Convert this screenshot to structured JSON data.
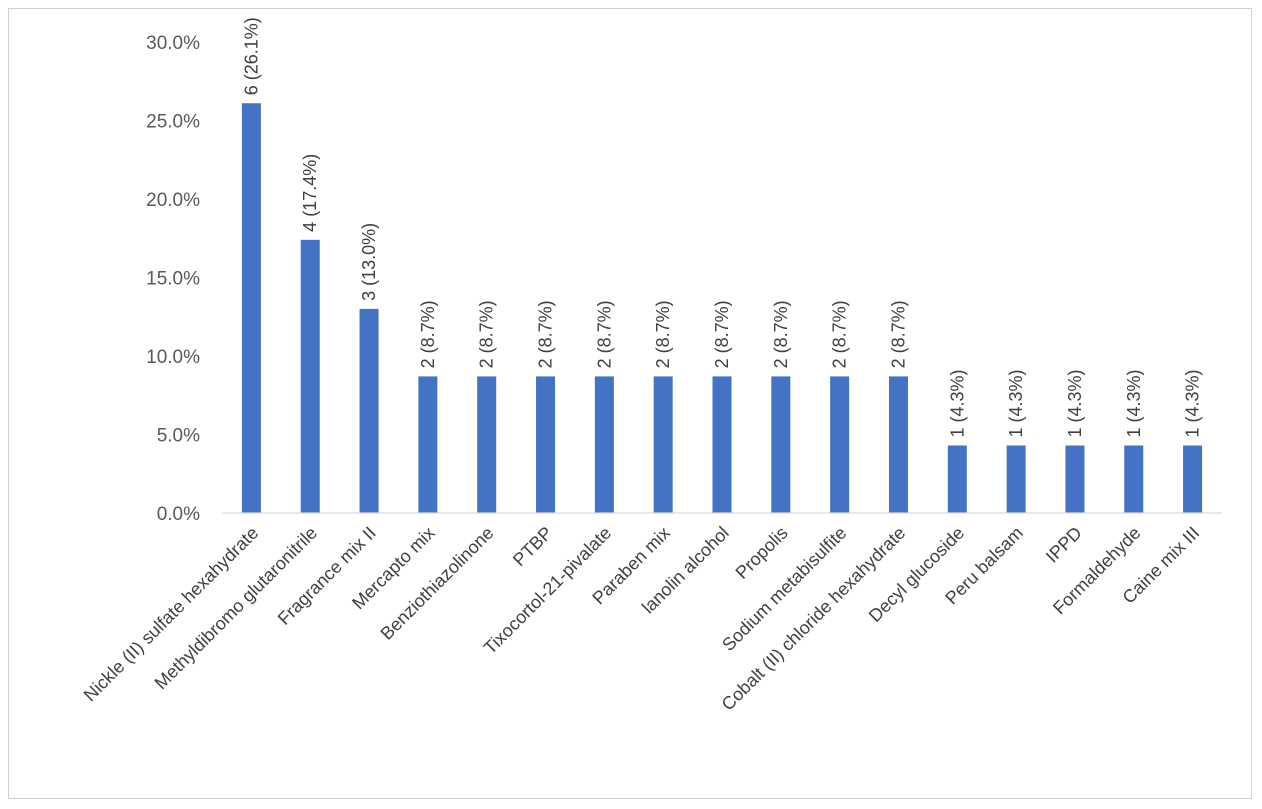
{
  "chart_data": {
    "type": "bar",
    "title": "",
    "xlabel": "",
    "ylabel": "",
    "ylim": [
      0,
      30
    ],
    "yticks": [
      "0.0%",
      "5.0%",
      "10.0%",
      "15.0%",
      "20.0%",
      "25.0%",
      "30.0%"
    ],
    "ytick_values": [
      0,
      5,
      10,
      15,
      20,
      25,
      30
    ],
    "grid": false,
    "legend": "none",
    "bar_color": "#4472C4",
    "categories": [
      "Nickle (II) sulfate hexahydrate",
      "Methyldibromo glutaronitrile",
      "Fragrance mix II",
      "Mercapto mix",
      "Benziothiazolinone",
      "PTBP",
      "Tixocortol-21-pivalate",
      "Paraben mix",
      "lanolin alcohol",
      "Propolis",
      "Sodium metabisulfite",
      "Cobalt (II) chloride hexahydrate",
      "Decyl glucoside",
      "Peru balsam",
      "IPPD",
      "Formaldehyde",
      "Caine mix III"
    ],
    "values": [
      26.1,
      17.4,
      13.0,
      8.7,
      8.7,
      8.7,
      8.7,
      8.7,
      8.7,
      8.7,
      8.7,
      8.7,
      4.3,
      4.3,
      4.3,
      4.3,
      4.3
    ],
    "data_labels": [
      "6 (26.1%)",
      "4 (17.4%)",
      "3 (13.0%)",
      "2 (8.7%)",
      "2 (8.7%)",
      "2 (8.7%)",
      "2 (8.7%)",
      "2 (8.7%)",
      "2 (8.7%)",
      "2 (8.7%)",
      "2 (8.7%)",
      "2 (8.7%)",
      "1 (4.3%)",
      "1 (4.3%)",
      "1 (4.3%)",
      "1 (4.3%)",
      "1 (4.3%)"
    ]
  }
}
